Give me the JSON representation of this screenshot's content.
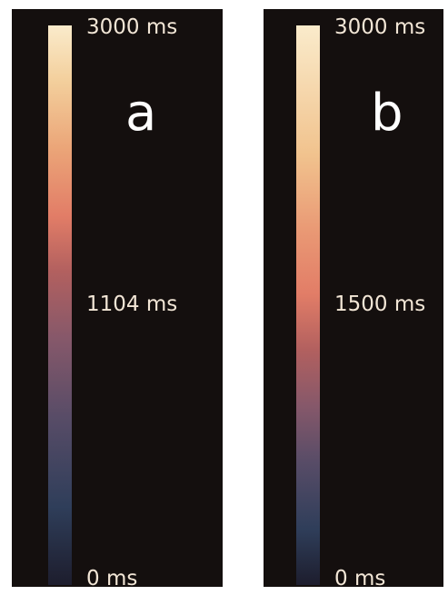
{
  "panels": [
    {
      "letter": "a",
      "ticks": {
        "top": "3000 ms",
        "middle": "1104 ms",
        "bottom": "0 ms"
      }
    },
    {
      "letter": "b",
      "ticks": {
        "top": "3000 ms",
        "middle": "1500 ms",
        "bottom": "0 ms"
      }
    }
  ],
  "colormap_stops": [
    "#1d1d2d",
    "#2f3e5a",
    "#584c67",
    "#86586a",
    "#b2605f",
    "#e27d67",
    "#eba578",
    "#f3cf9c",
    "#faebcb"
  ]
}
